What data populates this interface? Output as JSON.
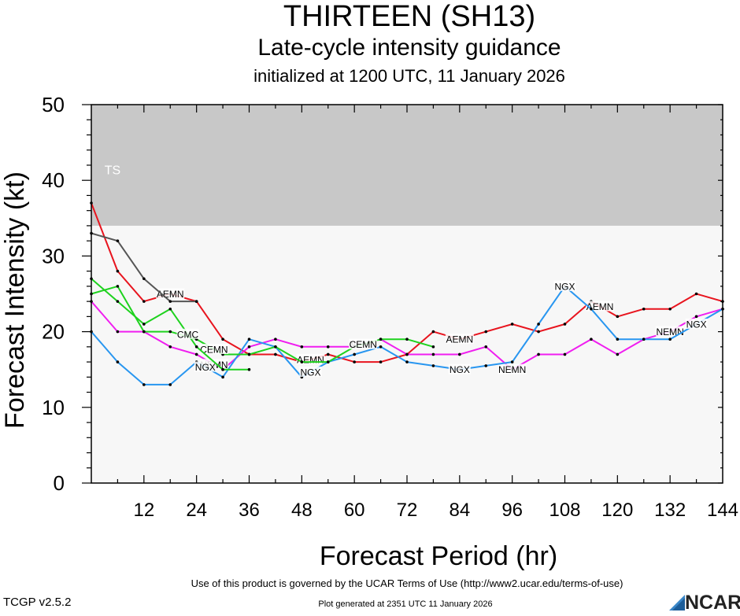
{
  "header": {
    "title": "THIRTEEN (SH13)",
    "subtitle": "Late-cycle intensity guidance",
    "initialized": "initialized at 1200 UTC, 11 January 2026"
  },
  "footer": {
    "terms": "Use of this product is governed by the UCAR Terms of Use (http://www2.ucar.edu/terms-of-use)",
    "version": "TCGP v2.5.2",
    "generated": "Plot generated at 2351 UTC   11 January 2026",
    "logo": "NCAR"
  },
  "colors": {
    "ts_band": "#c8c8c8",
    "plot_bg": "#f7f7f7"
  },
  "chart_data": {
    "type": "line",
    "xlabel": "Forecast Period (hr)",
    "ylabel": "Forecast Intensity (kt)",
    "xlim": [
      0,
      144
    ],
    "ylim": [
      0,
      50
    ],
    "xticks": [
      "12",
      "24",
      "36",
      "48",
      "60",
      "72",
      "84",
      "96",
      "108",
      "120",
      "132",
      "144"
    ],
    "yticks": [
      "0",
      "10",
      "20",
      "30",
      "40",
      "50"
    ],
    "band": {
      "label": "TS",
      "from": 34,
      "to": 50
    },
    "series": [
      {
        "name": "AEMN",
        "color": "#e8141e",
        "x": [
          0,
          6,
          12,
          18,
          24,
          30,
          36,
          42,
          48,
          54,
          60,
          66,
          72,
          78,
          84,
          90,
          96,
          102,
          108,
          114,
          120,
          126,
          132,
          138,
          144
        ],
        "y": [
          37,
          28,
          24,
          25,
          24,
          19,
          17,
          17,
          16,
          17,
          16,
          16,
          17,
          20,
          19,
          20,
          21,
          20,
          21,
          24,
          22,
          23,
          23,
          25,
          24
        ],
        "label_at": [
          18,
          50,
          84,
          116
        ]
      },
      {
        "name": "NEMN",
        "color": "#f01ef0",
        "x": [
          0,
          6,
          12,
          18,
          24,
          30,
          36,
          42,
          48,
          54,
          60,
          66,
          72,
          78,
          84,
          90,
          96,
          102,
          108,
          114,
          120,
          126,
          132,
          138,
          144
        ],
        "y": [
          24,
          20,
          20,
          18,
          17,
          15,
          18,
          19,
          18,
          18,
          18,
          19,
          17,
          17,
          17,
          18,
          15,
          17,
          17,
          19,
          17,
          19,
          20,
          22,
          23
        ],
        "label_at": [
          28,
          62,
          96,
          132
        ]
      },
      {
        "name": "NGX",
        "color": "#2896f0",
        "x": [
          0,
          6,
          12,
          18,
          24,
          30,
          36,
          42,
          48,
          54,
          60,
          66,
          72,
          78,
          84,
          90,
          96,
          102,
          108,
          114,
          120,
          126,
          132,
          138,
          144
        ],
        "y": [
          20,
          16,
          13,
          13,
          16,
          14,
          19,
          18,
          14,
          16,
          17,
          18,
          16,
          15.5,
          15,
          15.5,
          16,
          21,
          26,
          23,
          19,
          19,
          19,
          21,
          23
        ],
        "label_at": [
          26,
          50,
          84,
          108,
          138
        ]
      },
      {
        "name": "CEMN",
        "color": "#1ed21e",
        "x": [
          0,
          6,
          12,
          18,
          24,
          30,
          36,
          42,
          48,
          54,
          60,
          66,
          72,
          78
        ],
        "y": [
          25,
          26,
          20,
          20,
          19,
          17,
          17,
          18,
          16,
          16,
          18,
          19,
          19,
          18
        ],
        "label_at": [
          28,
          62
        ]
      },
      {
        "name": "CMC",
        "color": "#1ed21e",
        "x": [
          0,
          6,
          12,
          18,
          24,
          30,
          36
        ],
        "y": [
          27,
          24,
          21,
          23,
          18,
          15,
          15
        ],
        "label_at": [
          22
        ]
      },
      {
        "name": "",
        "color": "#555555",
        "x": [
          0,
          6,
          12,
          18,
          24
        ],
        "y": [
          33,
          32,
          27,
          24,
          24
        ],
        "label_at": []
      }
    ]
  }
}
